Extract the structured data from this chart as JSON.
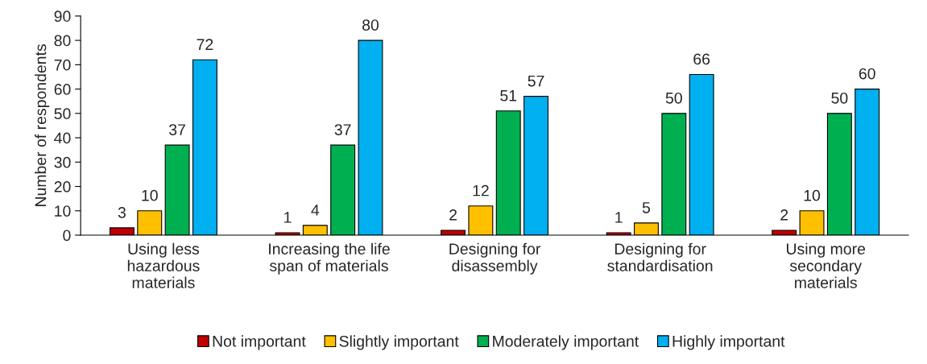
{
  "chart_data": {
    "type": "bar",
    "ylabel": "Number of respondents",
    "categories": [
      "Using less\nhazardous\nmaterials",
      "Increasing the life\nspan of materials",
      "Designing for\ndisassembly",
      "Designing for\nstandardisation",
      "Using more\nsecondary\nmaterials"
    ],
    "series": [
      {
        "name": "Not important",
        "color": "#c00000",
        "values": [
          3,
          1,
          2,
          1,
          2
        ]
      },
      {
        "name": "Slightly important",
        "color": "#ffc000",
        "values": [
          10,
          4,
          12,
          5,
          10
        ]
      },
      {
        "name": "Moderately important",
        "color": "#00b050",
        "values": [
          37,
          37,
          51,
          50,
          50
        ]
      },
      {
        "name": "Highly important",
        "color": "#00b0f0",
        "values": [
          72,
          80,
          57,
          66,
          60
        ]
      }
    ],
    "ylim": [
      0,
      90
    ],
    "yticks": [
      0,
      10,
      20,
      30,
      40,
      50,
      60,
      70,
      80,
      90
    ],
    "grid": false,
    "legend": "bottom",
    "data_labels": true
  }
}
